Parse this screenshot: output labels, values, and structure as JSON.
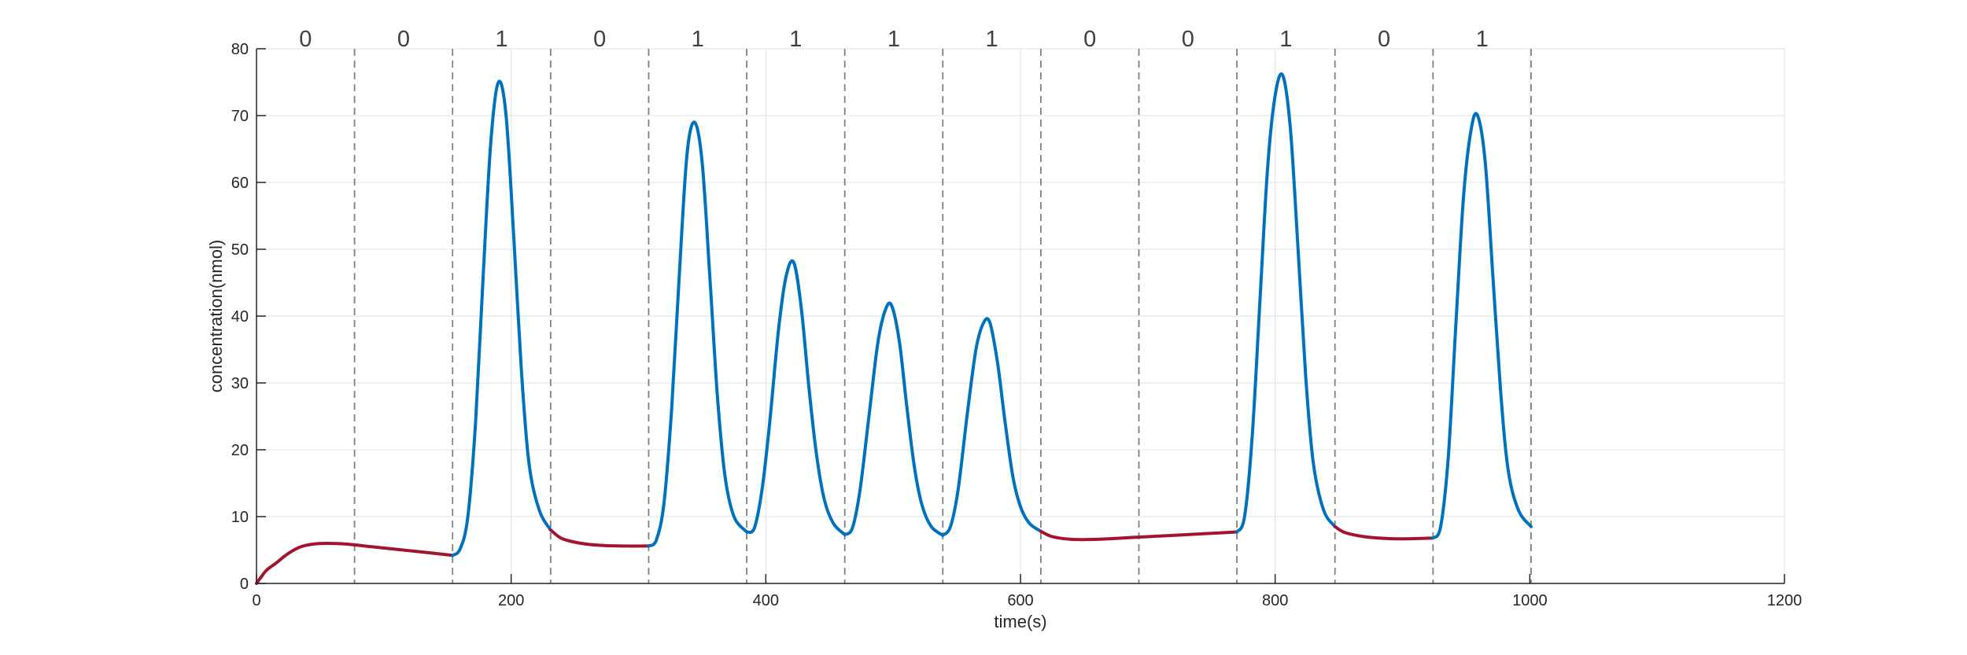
{
  "chart_data": {
    "type": "line",
    "xlabel": "time(s)",
    "ylabel": "concentration(nmol)",
    "xlim": [
      0,
      1200
    ],
    "ylim": [
      0,
      80
    ],
    "xticks": [
      0,
      200,
      400,
      600,
      800,
      1000,
      1200
    ],
    "yticks": [
      0,
      10,
      20,
      30,
      40,
      50,
      60,
      70,
      80
    ],
    "grid": true,
    "legend": "none",
    "bit_boundaries": [
      77,
      154,
      231,
      308,
      385,
      462,
      539,
      616,
      693,
      770,
      847,
      924,
      1001
    ],
    "bits": [
      "0",
      "0",
      "1",
      "0",
      "1",
      "1",
      "1",
      "1",
      "0",
      "0",
      "1",
      "0",
      "1"
    ],
    "colors": {
      "bit0": "#A2142F",
      "bit1": "#0072BD",
      "boundary": "#808080",
      "grid": "#e6e6e6",
      "axis": "#262626"
    },
    "series": [
      {
        "bit": "0",
        "points": [
          [
            0,
            0
          ],
          [
            3,
            0.8
          ],
          [
            8,
            2
          ],
          [
            15,
            3
          ],
          [
            25,
            4.5
          ],
          [
            35,
            5.5
          ],
          [
            45,
            5.9
          ],
          [
            55,
            6
          ],
          [
            70,
            5.9
          ],
          [
            90,
            5.5
          ],
          [
            110,
            5.1
          ],
          [
            130,
            4.7
          ],
          [
            154,
            4.2
          ]
        ]
      },
      {
        "bit": "1",
        "points": [
          [
            154,
            4.2
          ],
          [
            160,
            5.2
          ],
          [
            166,
            10
          ],
          [
            172,
            24
          ],
          [
            178,
            46
          ],
          [
            184,
            66
          ],
          [
            190,
            75
          ],
          [
            196,
            70
          ],
          [
            202,
            52
          ],
          [
            208,
            32
          ],
          [
            214,
            18
          ],
          [
            222,
            11
          ],
          [
            231,
            8
          ]
        ]
      },
      {
        "bit": "0",
        "points": [
          [
            231,
            8
          ],
          [
            240,
            6.7
          ],
          [
            255,
            6
          ],
          [
            270,
            5.7
          ],
          [
            290,
            5.6
          ],
          [
            308,
            5.6
          ]
        ]
      },
      {
        "bit": "1",
        "points": [
          [
            308,
            5.6
          ],
          [
            314,
            6.5
          ],
          [
            320,
            12
          ],
          [
            326,
            26
          ],
          [
            332,
            46
          ],
          [
            338,
            64
          ],
          [
            344,
            69
          ],
          [
            350,
            63
          ],
          [
            356,
            46
          ],
          [
            362,
            28
          ],
          [
            368,
            16
          ],
          [
            375,
            10
          ],
          [
            385,
            7.7
          ]
        ]
      },
      {
        "bit": "1",
        "points": [
          [
            385,
            7.7
          ],
          [
            391,
            8.3
          ],
          [
            397,
            14
          ],
          [
            403,
            24
          ],
          [
            410,
            38
          ],
          [
            416,
            46
          ],
          [
            422,
            48
          ],
          [
            428,
            41
          ],
          [
            434,
            29
          ],
          [
            440,
            19
          ],
          [
            446,
            12.5
          ],
          [
            453,
            9
          ],
          [
            462,
            7.3
          ]
        ]
      },
      {
        "bit": "1",
        "points": [
          [
            462,
            7.3
          ],
          [
            468,
            8.3
          ],
          [
            474,
            14
          ],
          [
            481,
            25
          ],
          [
            488,
            36
          ],
          [
            494,
            41
          ],
          [
            499,
            41.5
          ],
          [
            505,
            36
          ],
          [
            511,
            26
          ],
          [
            517,
            17
          ],
          [
            523,
            11.5
          ],
          [
            530,
            8.5
          ],
          [
            539,
            7.2
          ]
        ]
      },
      {
        "bit": "1",
        "points": [
          [
            539,
            7.2
          ],
          [
            545,
            8.5
          ],
          [
            551,
            14
          ],
          [
            558,
            25
          ],
          [
            565,
            35
          ],
          [
            571,
            39
          ],
          [
            576,
            39
          ],
          [
            582,
            33
          ],
          [
            588,
            24
          ],
          [
            594,
            16
          ],
          [
            600,
            11.5
          ],
          [
            607,
            9
          ],
          [
            616,
            7.8
          ]
        ]
      },
      {
        "bit": "0",
        "points": [
          [
            616,
            7.8
          ],
          [
            625,
            7
          ],
          [
            640,
            6.6
          ],
          [
            660,
            6.6
          ],
          [
            680,
            6.8
          ],
          [
            700,
            7
          ],
          [
            730,
            7.3
          ],
          [
            750,
            7.5
          ],
          [
            770,
            7.7
          ]
        ]
      },
      {
        "bit": "1",
        "points": [
          [
            770,
            7.7
          ],
          [
            776,
            10
          ],
          [
            782,
            22
          ],
          [
            788,
            42
          ],
          [
            794,
            62
          ],
          [
            800,
            73
          ],
          [
            806,
            76
          ],
          [
            812,
            68
          ],
          [
            818,
            50
          ],
          [
            824,
            31
          ],
          [
            830,
            18
          ],
          [
            838,
            11
          ],
          [
            847,
            8.5
          ]
        ]
      },
      {
        "bit": "0",
        "points": [
          [
            847,
            8.5
          ],
          [
            855,
            7.6
          ],
          [
            870,
            7
          ],
          [
            890,
            6.7
          ],
          [
            910,
            6.7
          ],
          [
            924,
            6.8
          ]
        ]
      },
      {
        "bit": "1",
        "points": [
          [
            924,
            6.8
          ],
          [
            930,
            8.5
          ],
          [
            936,
            19
          ],
          [
            942,
            39
          ],
          [
            948,
            58
          ],
          [
            954,
            68
          ],
          [
            959,
            70
          ],
          [
            965,
            63
          ],
          [
            971,
            46
          ],
          [
            977,
            29
          ],
          [
            983,
            17
          ],
          [
            991,
            11
          ],
          [
            1001,
            8.5
          ]
        ]
      }
    ]
  }
}
